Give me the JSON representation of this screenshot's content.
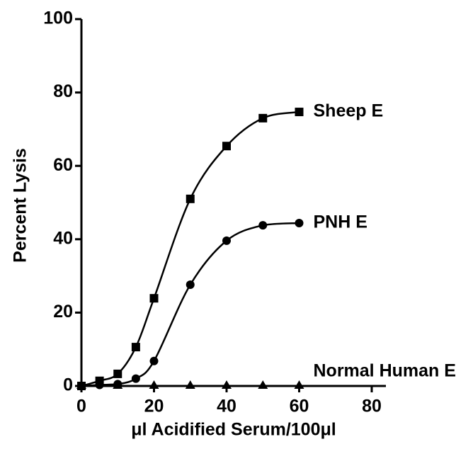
{
  "chart_data": {
    "type": "line",
    "xlabel": "μl Acidified Serum/100μl",
    "ylabel": "Percent Lysis",
    "x": [
      0,
      5,
      10,
      15,
      20,
      30,
      40,
      50,
      60
    ],
    "series": [
      {
        "name": "Sheep E",
        "color": "#000000",
        "marker": "square",
        "line": true,
        "values": [
          0,
          1.4,
          3.3,
          10.6,
          23.9,
          51,
          65.4,
          73,
          74.7
        ]
      },
      {
        "name": "PNH E",
        "color": "#000000",
        "marker": "circle",
        "line": true,
        "values": [
          0,
          0.3,
          0.5,
          2,
          6.8,
          27.6,
          39.6,
          43.8,
          44.4
        ]
      },
      {
        "name": "Normal Human E",
        "color": "#000000",
        "marker": "triangle",
        "line": false,
        "values": [
          0,
          null,
          0,
          null,
          0,
          0,
          0,
          0,
          0
        ]
      }
    ],
    "xlim": [
      0,
      80
    ],
    "xticks": [
      0,
      20,
      40,
      60,
      80
    ],
    "ylim": [
      0,
      100
    ],
    "yticks": [
      0,
      20,
      40,
      60,
      80,
      100
    ],
    "grid": false
  }
}
